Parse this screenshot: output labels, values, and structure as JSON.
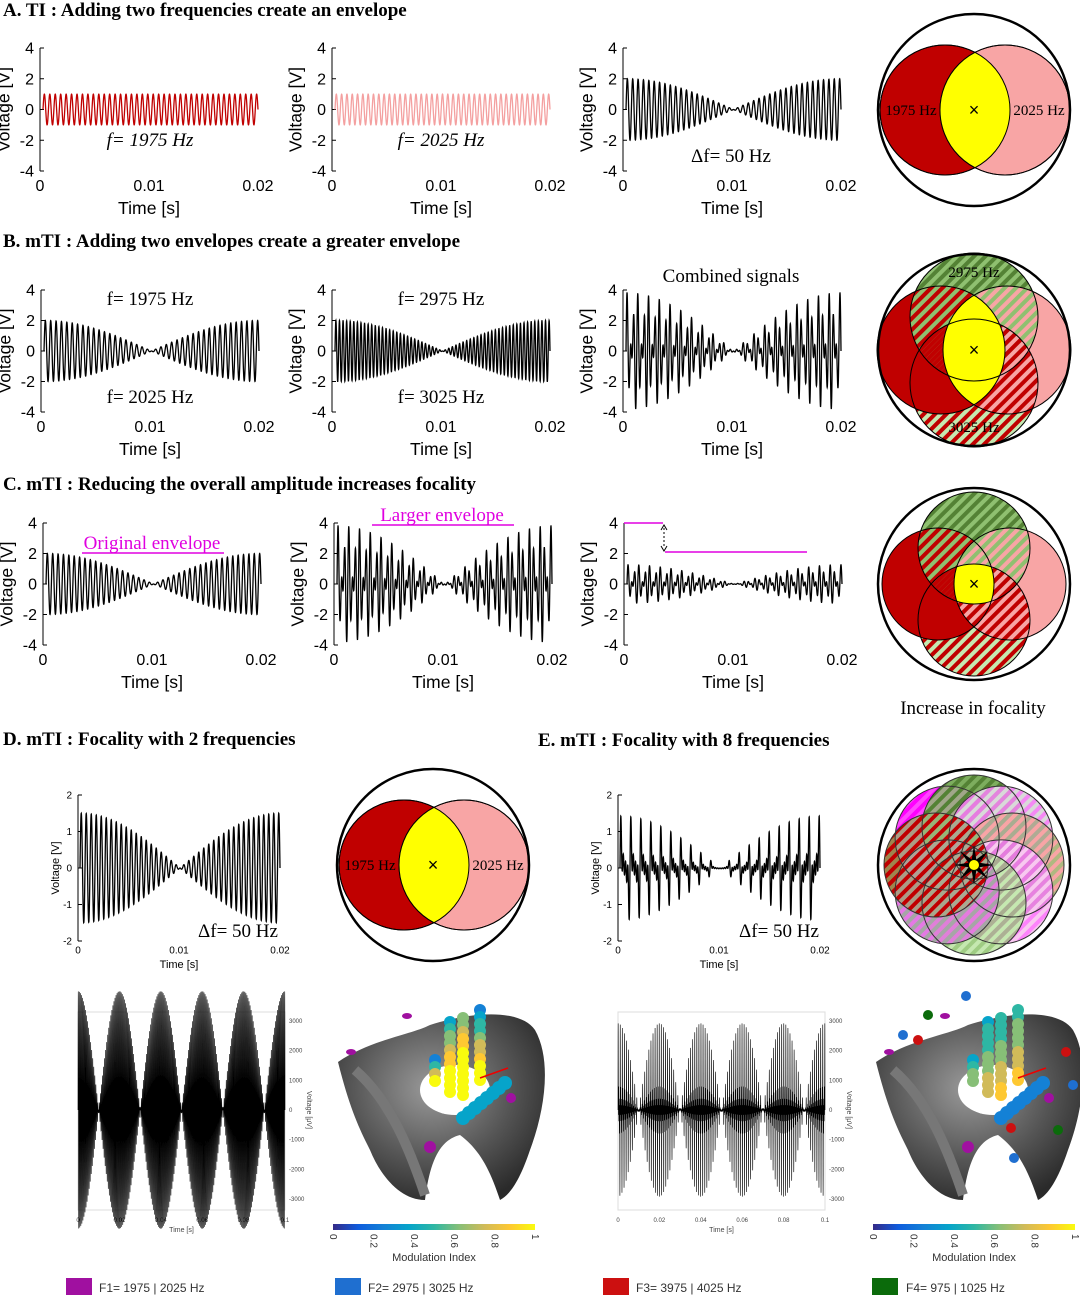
{
  "titles": {
    "A": "A. TI : Adding two frequencies create an envelope",
    "B": "B. mTI : Adding two envelopes create a greater envelope",
    "C": "C. mTI : Reducing the overall amplitude increases focality",
    "D": "D. mTI : Focality with  2 frequencies",
    "E": "E. mTI : Focality with 8 frequencies"
  },
  "axes": {
    "ylabel": "Voltage [V]",
    "xlabel": "Time [s]",
    "yticks_large": [
      "4",
      "2",
      "0",
      "-2",
      "-4"
    ],
    "yticks_small": [
      "2",
      "1",
      "0",
      "-1",
      "-2"
    ],
    "xticks_short": [
      "0",
      "0.01",
      "0.02"
    ],
    "bottom_ylabel": "Voltage [μV]",
    "bottom_yticks": [
      "3000",
      "2000",
      "1000",
      "0",
      "-1000",
      "-2000",
      "-3000"
    ],
    "bottom_xticks": [
      "0",
      "0.02",
      "0.04",
      "0.06",
      "0.08",
      "0.1"
    ]
  },
  "annotations": {
    "A1": "f= 1975 Hz",
    "A2": "f= 2025 Hz",
    "A3": "Δf= 50 Hz",
    "B1_top": "f= 1975 Hz",
    "B1_bottom": "f= 2025 Hz",
    "B2_top": "f= 2975 Hz",
    "B2_bottom": "f= 3025 Hz",
    "B3": "Combined signals",
    "C1": "Original envelope",
    "C2": "Larger envelope",
    "C_focality": "Increase in focality",
    "D": "Δf= 50 Hz",
    "E": "Δf= 50 Hz"
  },
  "venn": {
    "A": [
      "1975 Hz",
      "2025 Hz"
    ],
    "B": [
      "2975 Hz",
      "3025 Hz"
    ],
    "D": [
      "1975 Hz",
      "2025 Hz"
    ],
    "focus_mark": "×"
  },
  "signals": {
    "A1": {
      "freqs": [
        1975
      ],
      "amp": 1,
      "color": "#c00000"
    },
    "A2": {
      "freqs": [
        2025
      ],
      "amp": 1,
      "color": "#f4a0a0"
    },
    "A3": {
      "freqs": [
        1975,
        2025
      ],
      "amp": 1,
      "color": "#000000"
    },
    "B1": {
      "freqs": [
        1975,
        2025
      ],
      "amp": 1,
      "color": "#000000"
    },
    "B2": {
      "freqs": [
        2975,
        3025
      ],
      "amp": 1,
      "color": "#000000"
    },
    "B3": {
      "freqs": [
        1975,
        2025,
        2975,
        3025
      ],
      "amp": 1,
      "color": "#000000"
    },
    "C1": {
      "freqs": [
        1975,
        2025
      ],
      "amp": 1,
      "color": "#000000"
    },
    "C2": {
      "freqs": [
        1975,
        2025,
        2975,
        3025
      ],
      "amp": 1,
      "color": "#000000"
    },
    "C3": {
      "freqs": [
        1975,
        2025,
        2975,
        3025
      ],
      "amp": 0.33,
      "color": "#000000"
    },
    "D": {
      "freqs": [
        1975,
        2025
      ],
      "amp": 0.75,
      "color": "#000000"
    },
    "E": {
      "freqs": [
        975,
        1025,
        1975,
        2025,
        2975,
        3025,
        3975,
        4025
      ],
      "amp": 0.22,
      "color": "#000000"
    },
    "D_bottom": {
      "freqs": [
        1975,
        2025
      ],
      "amp": 1500,
      "color": "#000000"
    },
    "E_bottom": {
      "freqs": [
        975,
        1025,
        1975,
        2025,
        2975,
        3025,
        3975,
        4025
      ],
      "amp": 340,
      "color": "#000000"
    }
  },
  "colorbar": {
    "label": "Modulation Index",
    "ticks": [
      "0",
      "0.2",
      "0.4",
      "0.6",
      "0.8",
      "1"
    ],
    "colors": [
      "#352a87",
      "#0f5cdd",
      "#1481d6",
      "#06a4ca",
      "#2eb7a4",
      "#87bf77",
      "#d1bb59",
      "#fec832",
      "#f9fb0e"
    ]
  },
  "legend": [
    {
      "label": "F1= 1975 | 2025 Hz",
      "color": "#a010a0"
    },
    {
      "label": "F2= 2975 | 3025 Hz",
      "color": "#1f6fd0"
    },
    {
      "label": "F3= 3975 | 4025 Hz",
      "color": "#cc1010"
    },
    {
      "label": "F4=  975 | 1025 Hz",
      "color": "#0b6b0b"
    }
  ],
  "colors": {
    "dark_red": "#c00000",
    "pink": "#f8a5a5",
    "yellow": "#ffff00",
    "dark_green": "#548235",
    "light_green": "#c5e8b0",
    "magenta": "#ff00ff",
    "gray": "#a6a6a6",
    "light_gray": "#d9d9d9",
    "light_pink": "#f8c8f0"
  }
}
